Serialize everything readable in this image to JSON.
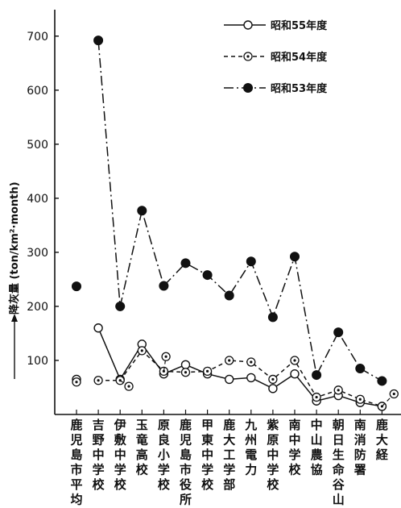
{
  "chart_data": {
    "type": "line",
    "ylabel": "降灰量 (ton/km²·month)",
    "ylim": [
      0,
      750
    ],
    "yticks": [
      100,
      200,
      300,
      400,
      500,
      600,
      700
    ],
    "categories": [
      "鹿児島市平均",
      "吉野中学校",
      "伊敷中学校",
      "玉竜高校",
      "原良小学校",
      "鹿児島市役所",
      "甲東中学校",
      "鹿大工学部",
      "九州電力",
      "紫原中学校",
      "南中学校",
      "中山農協",
      "朝日生命谷山",
      "南消防署",
      "鹿大経"
    ],
    "series": [
      {
        "name": "昭和55年度",
        "style": "solid-open-circle",
        "color": "#111111",
        "values": [
          65,
          160,
          65,
          130,
          75,
          92,
          75,
          65,
          68,
          48,
          75,
          25,
          35,
          22,
          15
        ]
      },
      {
        "name": "昭和54年度",
        "style": "dashed-dot-circle",
        "color": "#111111",
        "values": [
          60,
          63,
          63,
          118,
          80,
          78,
          80,
          100,
          97,
          65,
          100,
          32,
          45,
          28,
          15
        ],
        "outlier_points": [
          {
            "category": "伊敷中学校",
            "offset": 0.4,
            "value": 52
          },
          {
            "category": "原良小学校",
            "offset": 0.1,
            "value": 107
          },
          {
            "category": "鹿大経",
            "offset": 0.55,
            "value": 38
          }
        ]
      },
      {
        "name": "昭和53年度",
        "style": "dashdot-filled-circle",
        "color": "#111111",
        "values": [
          237,
          692,
          200,
          377,
          238,
          280,
          258,
          220,
          283,
          180,
          292,
          73,
          152,
          85,
          62
        ]
      }
    ],
    "legend": {
      "position": "top-right"
    },
    "grid": false
  }
}
